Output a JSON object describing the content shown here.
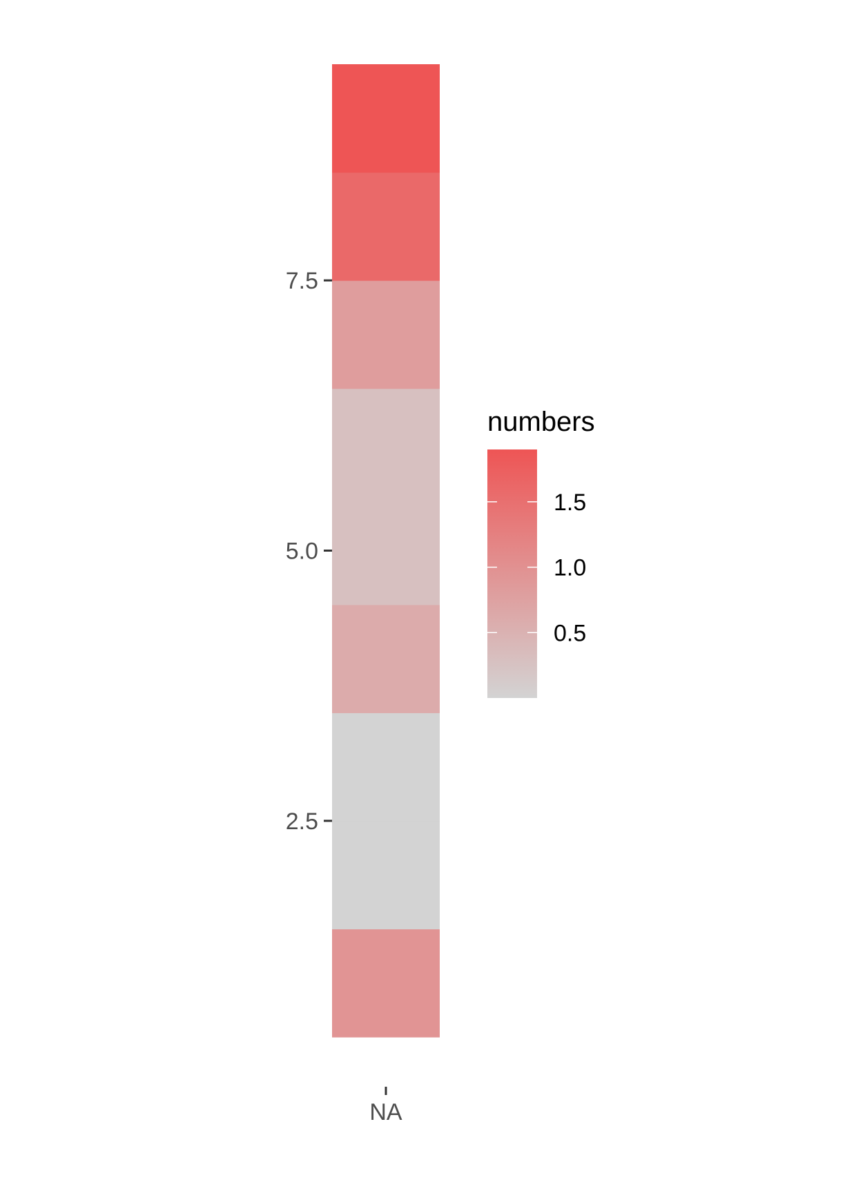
{
  "chart_data": {
    "type": "heatmap",
    "title": "",
    "xlabel": "",
    "ylabel": "",
    "x_categories": [
      "NA"
    ],
    "y_ticks": [
      2.5,
      5.0,
      7.5
    ],
    "y_tick_labels": [
      "2.5",
      "5.0",
      "7.5"
    ],
    "ylim": [
      0.5,
      9.5
    ],
    "tiles": [
      {
        "x": "NA",
        "y": 1,
        "value": 0.95
      },
      {
        "x": "NA",
        "y": 2,
        "value": 0.0
      },
      {
        "x": "NA",
        "y": 3,
        "value": 0.0
      },
      {
        "x": "NA",
        "y": 4,
        "value": 0.6
      },
      {
        "x": "NA",
        "y": 5,
        "value": 0.28
      },
      {
        "x": "NA",
        "y": 6,
        "value": 0.28
      },
      {
        "x": "NA",
        "y": 7,
        "value": 0.82
      },
      {
        "x": "NA",
        "y": 8,
        "value": 1.6
      },
      {
        "x": "NA",
        "y": 9,
        "value": 1.9
      }
    ],
    "legend": {
      "title": "numbers",
      "position": "right",
      "breaks": [
        0.5,
        1.0,
        1.5
      ],
      "break_labels": [
        "0.5",
        "1.0",
        "1.5"
      ],
      "range": [
        0.0,
        1.9
      ],
      "low_color": "#d3d3d3",
      "high_color": "#ee5555"
    },
    "grid": false
  }
}
